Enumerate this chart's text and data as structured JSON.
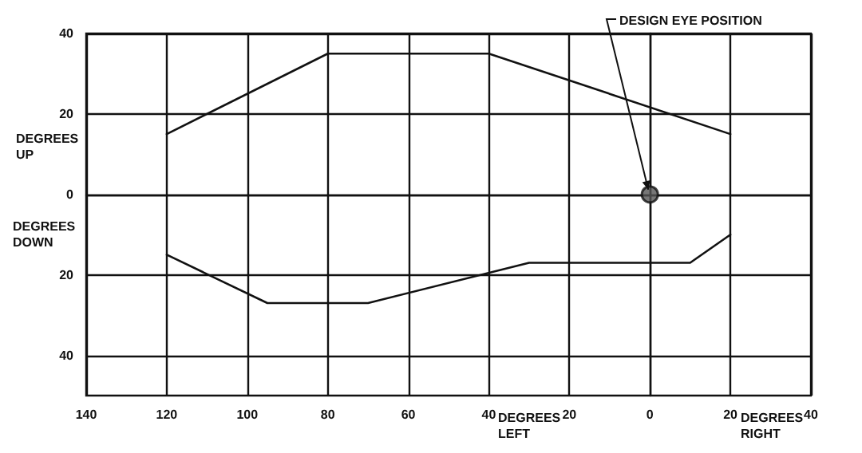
{
  "chart_data": {
    "type": "line",
    "xlabel": "DEGREES LEFT",
    "ylabel": "DEGREES UP",
    "annotations": [
      "DEGREES DOWN",
      "DEGREES RIGHT",
      {
        "text": "DESIGN EYE POSITION",
        "x": 0,
        "y": 0
      }
    ],
    "series": [
      {
        "color": "#111111",
        "x": [
          -120,
          -80,
          -40,
          20
        ],
        "values": [
          15,
          35,
          35,
          15
        ]
      },
      {
        "color": "#111111",
        "x": [
          -120,
          -95,
          -70,
          -30,
          10,
          20
        ],
        "values": [
          -15,
          -27,
          -27,
          -17,
          -17,
          -10
        ]
      },
      {
        "type": "scatter",
        "color": "#111111",
        "marker": "circle",
        "x": [
          0
        ],
        "values": [
          0
        ]
      }
    ],
    "xlim": [
      -140,
      40
    ],
    "xticks": [
      {
        "value": -140,
        "label": "140"
      },
      {
        "value": -120,
        "label": "120"
      },
      {
        "value": -100,
        "label": "100"
      },
      {
        "value": -80,
        "label": "80"
      },
      {
        "value": -60,
        "label": "60"
      },
      {
        "value": -40,
        "label": "40"
      },
      {
        "value": -20,
        "label": "20"
      },
      0,
      20,
      40
    ],
    "ylim": [
      -50,
      40
    ],
    "yticks": [
      {
        "value": -40,
        "label": "40"
      },
      {
        "value": -20,
        "label": "20"
      },
      0,
      20,
      40
    ],
    "grid": true,
    "marker": "none",
    "line_style": "solid"
  }
}
